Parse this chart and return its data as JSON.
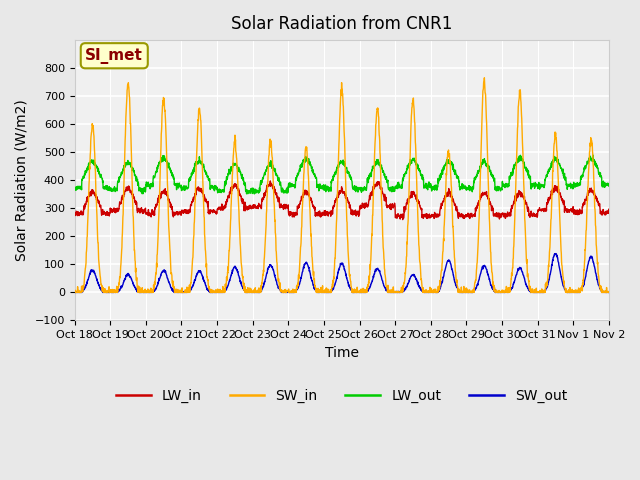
{
  "title": "Solar Radiation from CNR1",
  "xlabel": "Time",
  "ylabel": "Solar Radiation (W/m2)",
  "annotation": "SI_met",
  "ylim": [
    -100,
    900
  ],
  "yticks": [
    -100,
    0,
    100,
    200,
    300,
    400,
    500,
    600,
    700,
    800
  ],
  "background_color": "#e8e8e8",
  "plot_bg_color": "#f0f0f0",
  "legend": [
    "LW_in",
    "SW_in",
    "LW_out",
    "SW_out"
  ],
  "colors": {
    "LW_in": "#cc0000",
    "SW_in": "#ffaa00",
    "LW_out": "#00cc00",
    "SW_out": "#0000cc"
  },
  "xtick_labels": [
    "Oct 18",
    "Oct 19",
    "Oct 20",
    "Oct 21",
    "Oct 22",
    "Oct 23",
    "Oct 24",
    "Oct 25",
    "Oct 26",
    "Oct 27",
    "Oct 28",
    "Oct 29",
    "Oct 30",
    "Oct 31",
    "Nov 1",
    "Nov 2"
  ],
  "n_days": 15,
  "pts_per_day": 144
}
